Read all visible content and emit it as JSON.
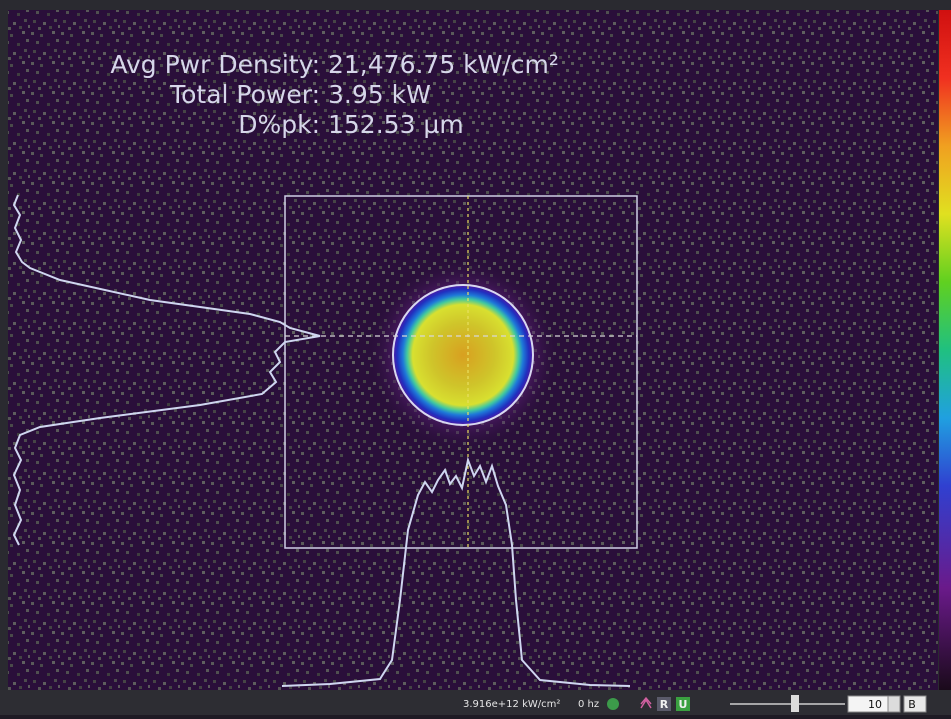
{
  "readouts": [
    {
      "label": "Avg Pwr Density:",
      "value": "21,476.75 kW/cm²"
    },
    {
      "label": "Total Power:",
      "value": "3.95 kW"
    },
    {
      "label": "D%pk:",
      "value": "152.53 µm"
    }
  ],
  "status_bar": {
    "peak": "3.916e+12 kW/cm²",
    "rate": "0 hz",
    "r_button": "R",
    "u_button": "U",
    "zoom": "10",
    "mode": "B"
  }
}
